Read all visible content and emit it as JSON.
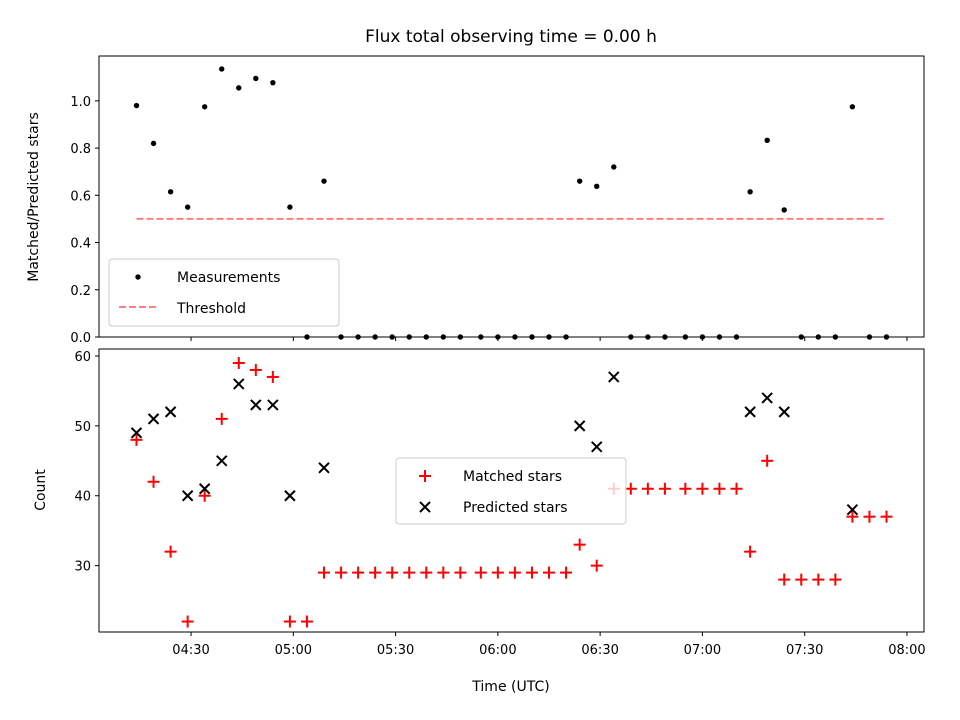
{
  "chart_data": [
    {
      "type": "scatter",
      "title": "Flux total observing time = 0.00 h",
      "xlabel": "",
      "ylabel": "Matched/Predicted stars",
      "xlim": [
        "04:03",
        "08:05"
      ],
      "ylim": [
        0,
        1.19
      ],
      "yticks": [
        0.0,
        0.2,
        0.4,
        0.6,
        0.8,
        1.0
      ],
      "yticklabels": [
        "0.0",
        "0.2",
        "0.4",
        "0.6",
        "0.8",
        "1.0"
      ],
      "legend_position": "lower-left",
      "series": [
        {
          "name": "Measurements",
          "marker": "dot",
          "color": "#000000",
          "x": [
            "04:14",
            "04:19",
            "04:24",
            "04:29",
            "04:34",
            "04:39",
            "04:44",
            "04:49",
            "04:54",
            "04:59",
            "05:04",
            "05:09",
            "05:14",
            "05:19",
            "05:24",
            "05:29",
            "05:34",
            "05:39",
            "05:44",
            "05:49",
            "05:55",
            "06:00",
            "06:05",
            "06:10",
            "06:15",
            "06:20",
            "06:24",
            "06:29",
            "06:34",
            "06:39",
            "06:44",
            "06:49",
            "06:55",
            "07:00",
            "07:05",
            "07:10",
            "07:14",
            "07:19",
            "07:24",
            "07:29",
            "07:34",
            "07:39",
            "07:44",
            "07:49",
            "07:54"
          ],
          "y": [
            0.98,
            0.82,
            0.615,
            0.55,
            0.975,
            1.135,
            1.055,
            1.095,
            1.077,
            0.55,
            0.0,
            0.66,
            0.0,
            0.0,
            0.0,
            0.0,
            0.0,
            0.0,
            0.0,
            0.0,
            0.0,
            0.0,
            0.0,
            0.0,
            0.0,
            0.0,
            0.66,
            0.638,
            0.72,
            0.0,
            0.0,
            0.0,
            0.0,
            0.0,
            0.0,
            0.0,
            0.615,
            0.833,
            0.538,
            0.0,
            0.0,
            0.0,
            0.975,
            0.0,
            0.0
          ]
        },
        {
          "name": "Threshold",
          "marker": "dashed-line",
          "color": "#ff7f7f",
          "x": [
            "04:14",
            "07:54"
          ],
          "y": [
            0.5,
            0.5
          ]
        }
      ]
    },
    {
      "type": "scatter",
      "title": "",
      "xlabel": "Time (UTC)",
      "ylabel": "Count",
      "xlim": [
        "04:03",
        "08:05"
      ],
      "ylim": [
        20.5,
        61.0
      ],
      "xticks": [
        "04:30",
        "05:00",
        "05:30",
        "06:00",
        "06:30",
        "07:00",
        "07:30",
        "08:00"
      ],
      "yticks": [
        30,
        40,
        50,
        60
      ],
      "yticklabels": [
        "30",
        "40",
        "50",
        "60"
      ],
      "legend_position": "center",
      "series": [
        {
          "name": "Matched stars",
          "marker": "plus",
          "color": "#ff0000",
          "x": [
            "04:14",
            "04:19",
            "04:24",
            "04:29",
            "04:34",
            "04:39",
            "04:44",
            "04:49",
            "04:54",
            "04:59",
            "05:04",
            "05:09",
            "05:14",
            "05:19",
            "05:24",
            "05:29",
            "05:34",
            "05:39",
            "05:44",
            "05:49",
            "05:55",
            "06:00",
            "06:05",
            "06:10",
            "06:15",
            "06:20",
            "06:24",
            "06:29",
            "06:34",
            "06:39",
            "06:44",
            "06:49",
            "06:55",
            "07:00",
            "07:05",
            "07:10",
            "07:14",
            "07:19",
            "07:24",
            "07:29",
            "07:34",
            "07:39",
            "07:44",
            "07:49",
            "07:54"
          ],
          "y": [
            48,
            42,
            32,
            22,
            40,
            51,
            59,
            58,
            57,
            22,
            22,
            29,
            29,
            29,
            29,
            29,
            29,
            29,
            29,
            29,
            29,
            29,
            29,
            29,
            29,
            29,
            33,
            30,
            41,
            41,
            41,
            41,
            41,
            41,
            41,
            41,
            32,
            45,
            28,
            28,
            28,
            28,
            37,
            37,
            37
          ]
        },
        {
          "name": "Predicted stars",
          "marker": "x",
          "color": "#000000",
          "x": [
            "04:14",
            "04:19",
            "04:24",
            "04:29",
            "04:34",
            "04:39",
            "04:44",
            "04:49",
            "04:54",
            "04:59",
            "05:09",
            "06:24",
            "06:29",
            "06:34",
            "07:14",
            "07:19",
            "07:24",
            "07:44"
          ],
          "y": [
            49,
            51,
            52,
            40,
            41,
            45,
            56,
            53,
            53,
            40,
            44,
            50,
            47,
            57,
            52,
            54,
            52,
            38
          ]
        }
      ]
    }
  ]
}
